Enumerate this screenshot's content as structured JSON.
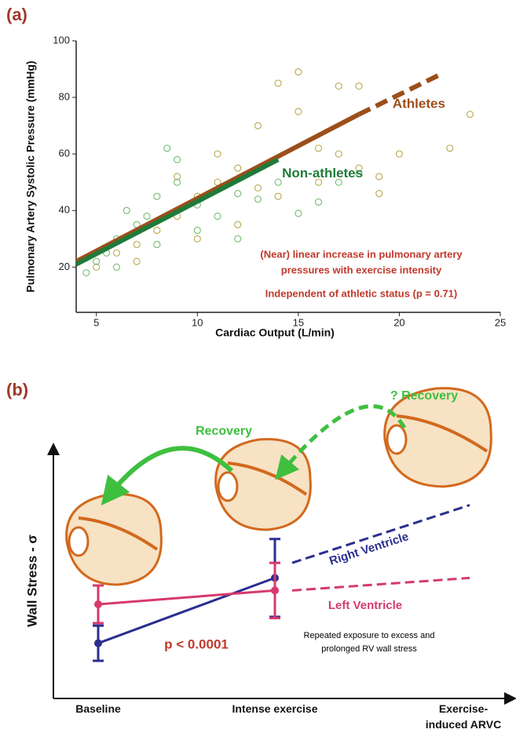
{
  "chart_data": [
    {
      "type": "scatter",
      "panel_label": "(a)",
      "xlabel": "Cardiac Output (L/min)",
      "ylabel": "Pulmonary Artery Systolic Pressure (mmHg)",
      "xlim": [
        4,
        25
      ],
      "ylim": [
        4,
        100
      ],
      "xticks": [
        5,
        10,
        15,
        20,
        25
      ],
      "yticks": [
        20,
        40,
        60,
        80,
        100
      ],
      "series": [
        {
          "name": "Athletes",
          "color": "#bfae5a",
          "fit_color": "#9c4e1a",
          "x": [
            5,
            6,
            7,
            8,
            9,
            10,
            11,
            12,
            13,
            14,
            15,
            16,
            17,
            18,
            19,
            20,
            22.5,
            23.5,
            12,
            14,
            16,
            18,
            9,
            11,
            13,
            15,
            7,
            10,
            17,
            19
          ],
          "values": [
            20,
            25,
            28,
            33,
            38,
            45,
            50,
            55,
            70,
            85,
            89,
            62,
            60,
            55,
            52,
            60,
            62,
            74,
            35,
            45,
            50,
            84,
            52,
            60,
            48,
            75,
            22,
            30,
            84,
            46
          ],
          "fit_x": [
            4,
            18,
            22
          ],
          "fit_values": [
            22,
            74,
            88
          ]
        },
        {
          "name": "Non-athletes",
          "color": "#7cc07a",
          "fit_color": "#1e7b3a",
          "x": [
            4.5,
            5,
            5.5,
            6,
            6.5,
            7,
            7.5,
            8,
            8.5,
            9,
            10,
            11,
            12,
            13,
            14,
            16,
            17,
            18,
            6,
            8,
            10,
            12,
            15,
            9
          ],
          "values": [
            18,
            22,
            25,
            30,
            40,
            35,
            38,
            45,
            62,
            50,
            42,
            38,
            46,
            44,
            50,
            43,
            50,
            53,
            20,
            28,
            33,
            30,
            39,
            58
          ],
          "fit_x": [
            4,
            14
          ],
          "fit_values": [
            21,
            58
          ]
        }
      ],
      "annotations": [
        "(Near) linear increase in pulmonary artery",
        "pressures with exercise intensity",
        "Independent of athletic status (p = 0.71)"
      ]
    },
    {
      "type": "line",
      "panel_label": "(b)",
      "ylabel": "Wall Stress - σ",
      "categories": [
        "Baseline",
        "Intense exercise",
        "Exercise-induced ARVC"
      ],
      "ylim": [
        0,
        100
      ],
      "series": [
        {
          "name": "Right Ventricle",
          "color": "#2b2f8f",
          "values": [
            22,
            48,
            null
          ],
          "errors": [
            7,
            15.5,
            null
          ],
          "trend_values": [
            null,
            54,
            77
          ]
        },
        {
          "name": "Left Ventricle",
          "color": "#d63a6b",
          "values": [
            37.5,
            43,
            null
          ],
          "errors": [
            7.5,
            11,
            null
          ],
          "trend_values": [
            null,
            43,
            48
          ]
        }
      ],
      "annotations": {
        "p_value": "p < 0.0001",
        "note": [
          "Repeated exposure to excess and",
          "prolonged RV wall stress"
        ],
        "recovery": "Recovery",
        "recovery_uncertain": "? Recovery"
      }
    }
  ]
}
